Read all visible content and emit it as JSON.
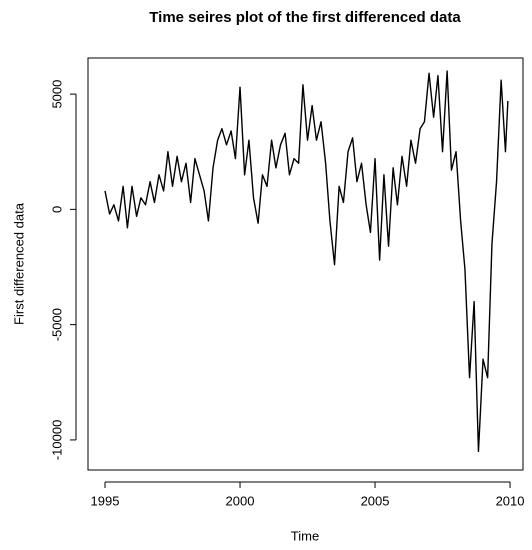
{
  "chart_data": {
    "type": "line",
    "title": "Time seires plot of the first differenced data",
    "x_label": "Time",
    "y_label": "First differenced data",
    "xlim": [
      1994.37,
      2010.48
    ],
    "xticks": [
      1995,
      2000,
      2005,
      2010
    ],
    "ylim": [
      -11304,
      6565
    ],
    "yticks": [
      -10000,
      -5000,
      0,
      5000
    ],
    "color": "#000000",
    "x": [
      1995,
      1995.17,
      1995.33,
      1995.5,
      1995.67,
      1995.83,
      1996,
      1996.17,
      1996.33,
      1996.5,
      1996.67,
      1996.83,
      1997,
      1997.17,
      1997.33,
      1997.5,
      1997.67,
      1997.83,
      1998,
      1998.17,
      1998.33,
      1998.5,
      1998.67,
      1998.83,
      1999,
      1999.17,
      1999.33,
      1999.5,
      1999.67,
      1999.83,
      2000,
      2000.17,
      2000.33,
      2000.5,
      2000.67,
      2000.83,
      2001,
      2001.17,
      2001.33,
      2001.5,
      2001.67,
      2001.83,
      2002,
      2002.17,
      2002.33,
      2002.5,
      2002.67,
      2002.83,
      2003,
      2003.17,
      2003.33,
      2003.5,
      2003.67,
      2003.83,
      2004,
      2004.17,
      2004.33,
      2004.5,
      2004.67,
      2004.83,
      2005,
      2005.17,
      2005.33,
      2005.5,
      2005.67,
      2005.83,
      2006,
      2006.17,
      2006.33,
      2006.5,
      2006.67,
      2006.83,
      2007,
      2007.17,
      2007.33,
      2007.5,
      2007.67,
      2007.83,
      2008,
      2008.17,
      2008.33,
      2008.5,
      2008.67,
      2008.83,
      2009,
      2009.17,
      2009.33,
      2009.5,
      2009.67,
      2009.83,
      2009.92
    ],
    "values": [
      800,
      -200,
      200,
      -500,
      1000,
      -800,
      1000,
      -300,
      500,
      200,
      1200,
      300,
      1500,
      800,
      2500,
      1000,
      2300,
      1200,
      2000,
      300,
      2200,
      1500,
      800,
      -500,
      1800,
      3000,
      3500,
      2800,
      3400,
      2200,
      5300,
      1500,
      3000,
      500,
      -600,
      1500,
      1000,
      3000,
      1800,
      2800,
      3300,
      1500,
      2200,
      2000,
      5400,
      3000,
      4500,
      3000,
      3800,
      2000,
      -500,
      -2400,
      1000,
      300,
      2500,
      3100,
      1200,
      2000,
      200,
      -1000,
      2200,
      -2200,
      1500,
      -1600,
      1800,
      200,
      2300,
      1000,
      3000,
      2000,
      3500,
      3800,
      5900,
      4000,
      5800,
      2500,
      6000,
      1700,
      2500,
      -500,
      -2600,
      -7300,
      -4000,
      -10500,
      -6500,
      -7300,
      -1500,
      1200,
      5600,
      2500,
      4700
    ]
  }
}
